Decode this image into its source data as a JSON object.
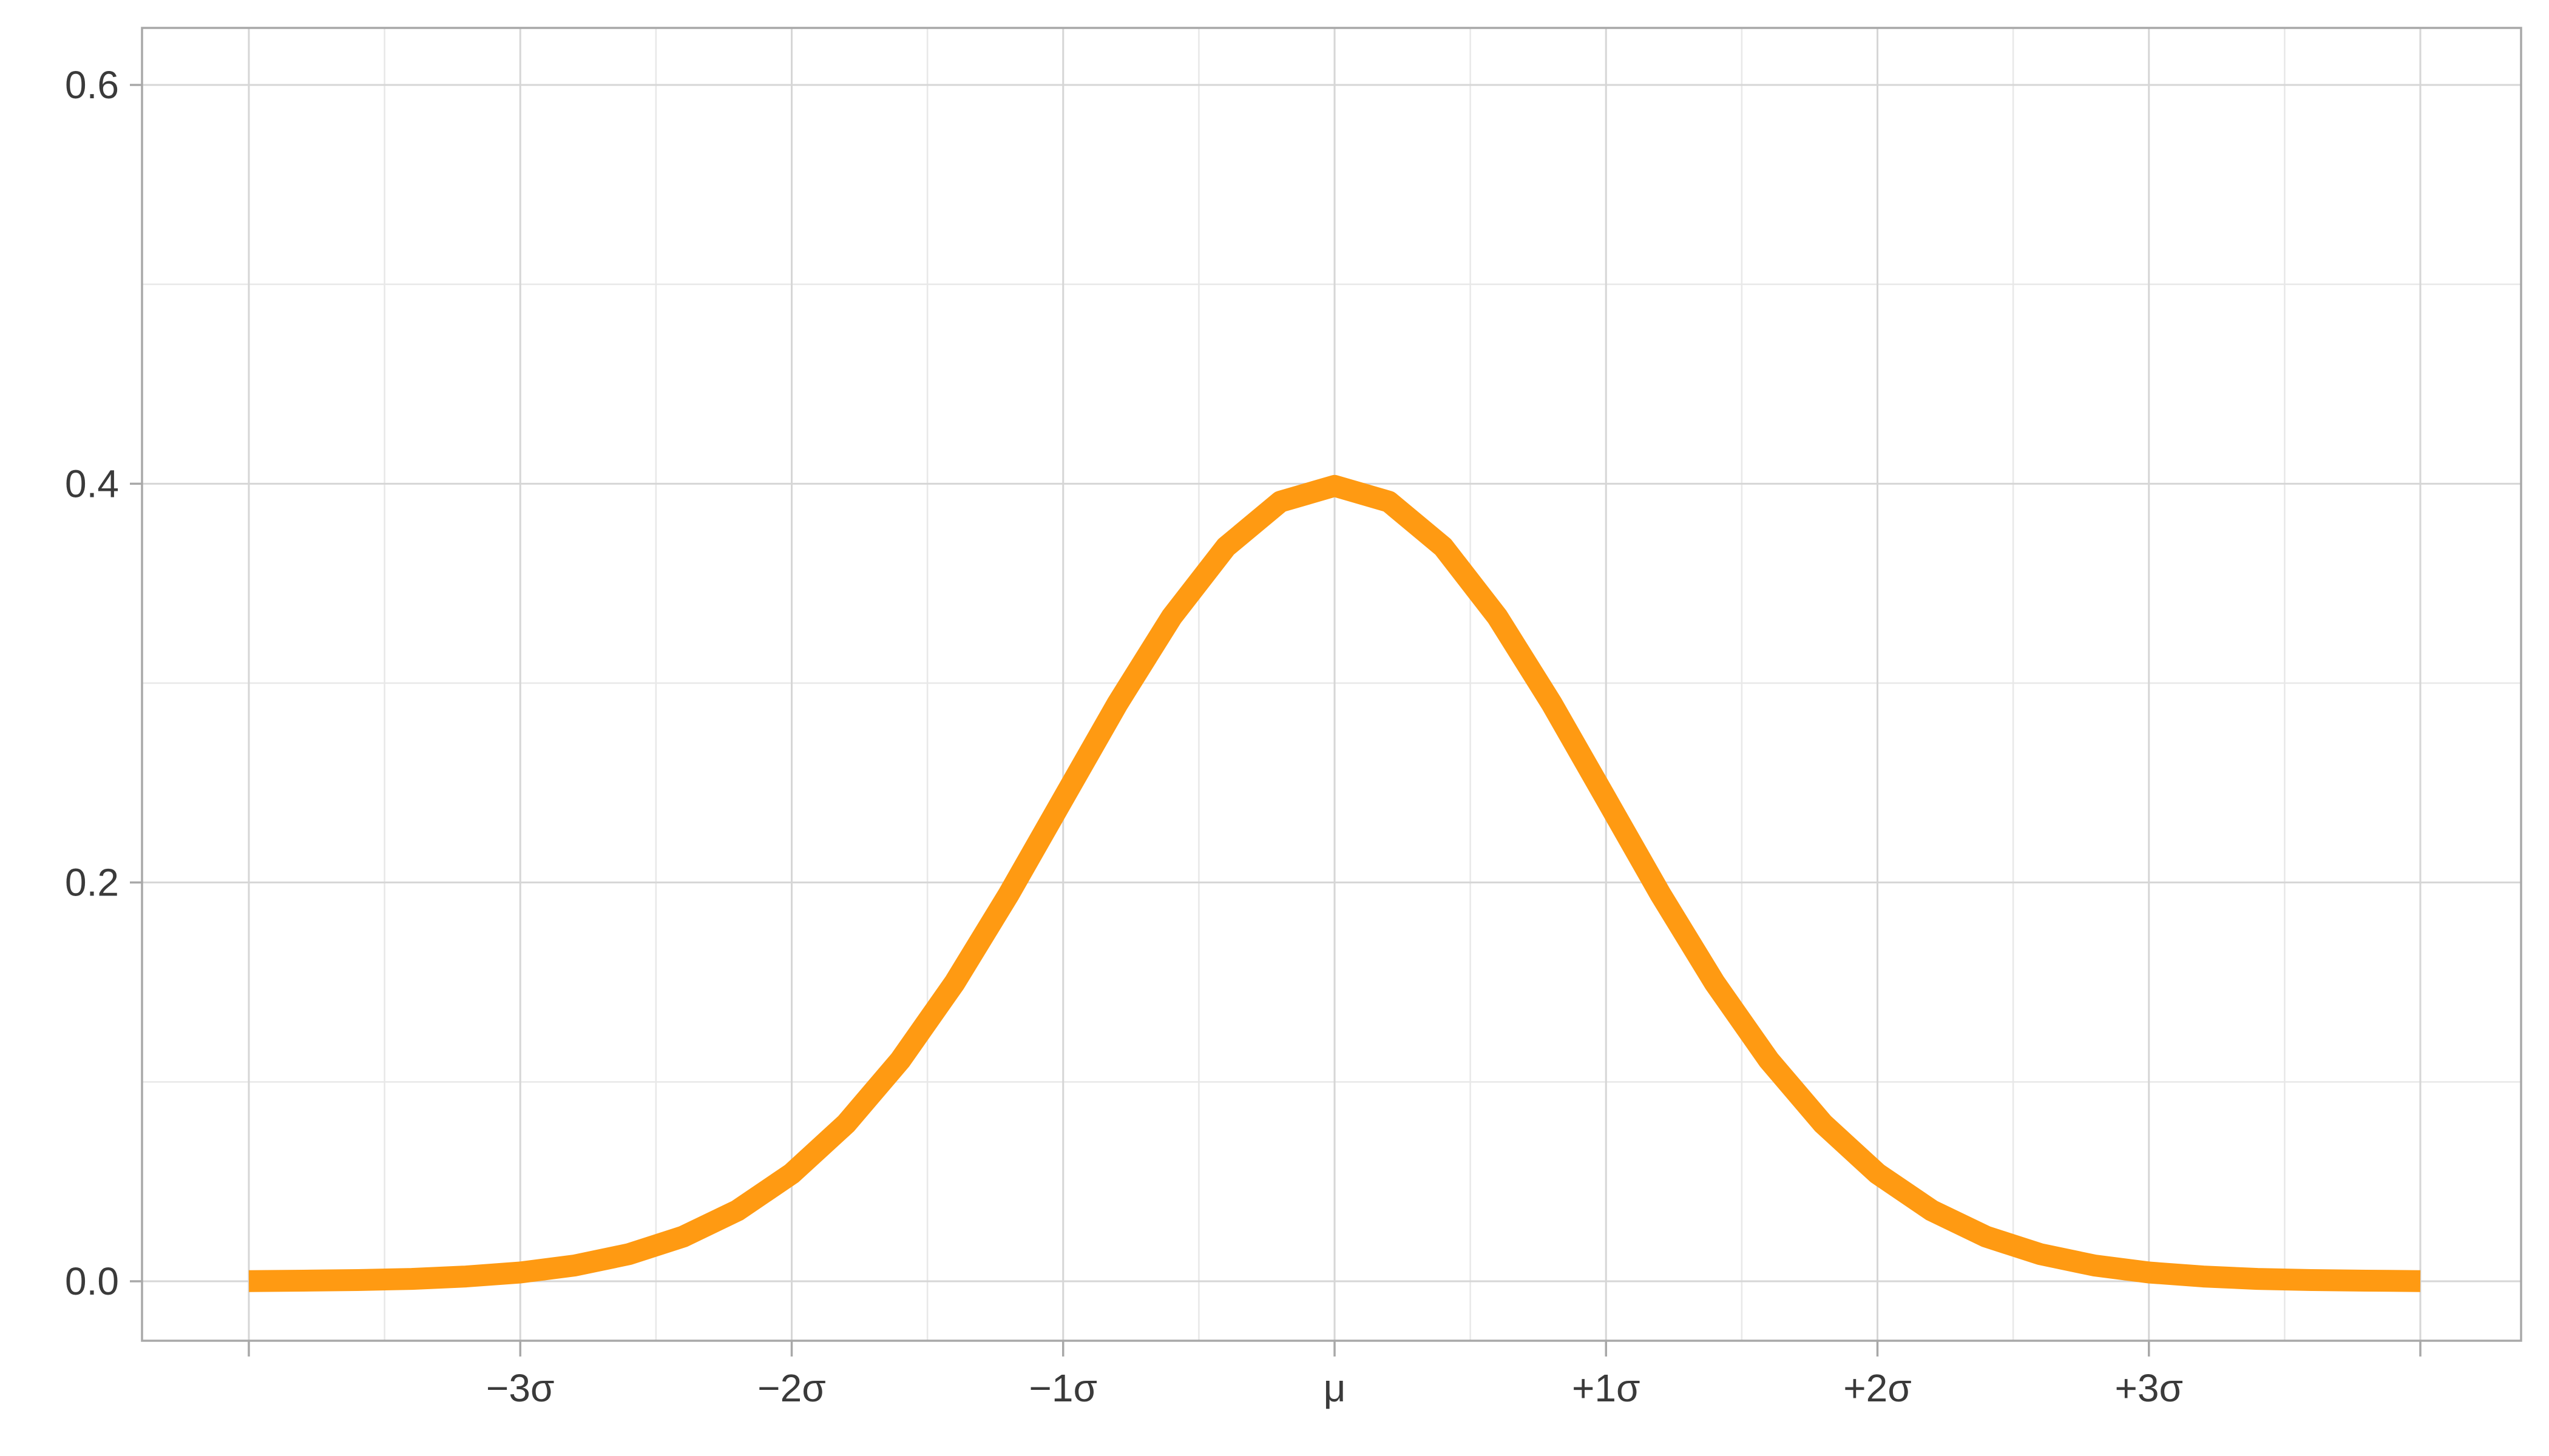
{
  "chart_data": {
    "type": "line",
    "title": "",
    "xlabel": "",
    "ylabel": "",
    "xlim": [
      -4,
      4
    ],
    "ylim": [
      0,
      0.6
    ],
    "x_ticks": [
      {
        "value": -3,
        "label": "−3σ"
      },
      {
        "value": -2,
        "label": "−2σ"
      },
      {
        "value": -1,
        "label": "−1σ"
      },
      {
        "value": 0,
        "label": "μ"
      },
      {
        "value": 1,
        "label": "+1σ"
      },
      {
        "value": 2,
        "label": "+2σ"
      },
      {
        "value": 3,
        "label": "+3σ"
      }
    ],
    "x_tick_marks": [
      -4,
      -3,
      -2,
      -1,
      0,
      1,
      2,
      3,
      4
    ],
    "x_minor_grid": [
      -3.5,
      -2.5,
      -1.5,
      -0.5,
      0.5,
      1.5,
      2.5,
      3.5
    ],
    "y_ticks": [
      {
        "value": 0.0,
        "label": "0.0"
      },
      {
        "value": 0.2,
        "label": "0.2"
      },
      {
        "value": 0.4,
        "label": "0.4"
      },
      {
        "value": 0.6,
        "label": "0.6"
      }
    ],
    "y_minor_grid": [
      0.1,
      0.3,
      0.5
    ],
    "grid": true,
    "legend": "none",
    "series": [
      {
        "color": "#ff9a12",
        "x": [
          -4.0,
          -3.8,
          -3.6,
          -3.4,
          -3.2,
          -3.0,
          -2.8,
          -2.6,
          -2.4,
          -2.2,
          -2.0,
          -1.8,
          -1.6,
          -1.4,
          -1.2,
          -1.0,
          -0.8,
          -0.6,
          -0.4,
          -0.2,
          0.0,
          0.2,
          0.4,
          0.6,
          0.8,
          1.0,
          1.2,
          1.4,
          1.6,
          1.8,
          2.0,
          2.2,
          2.4,
          2.6,
          2.8,
          3.0,
          3.2,
          3.4,
          3.6,
          3.8,
          4.0
        ],
        "y": [
          0.0001,
          0.0003,
          0.0006,
          0.0012,
          0.0024,
          0.0044,
          0.0079,
          0.0136,
          0.0224,
          0.0355,
          0.054,
          0.079,
          0.1109,
          0.1497,
          0.1942,
          0.242,
          0.2897,
          0.3332,
          0.3683,
          0.391,
          0.3989,
          0.391,
          0.3683,
          0.3332,
          0.2897,
          0.242,
          0.1942,
          0.1497,
          0.1109,
          0.079,
          0.054,
          0.0355,
          0.0224,
          0.0136,
          0.0079,
          0.0044,
          0.0024,
          0.0012,
          0.0006,
          0.0003,
          0.0001
        ]
      }
    ]
  }
}
